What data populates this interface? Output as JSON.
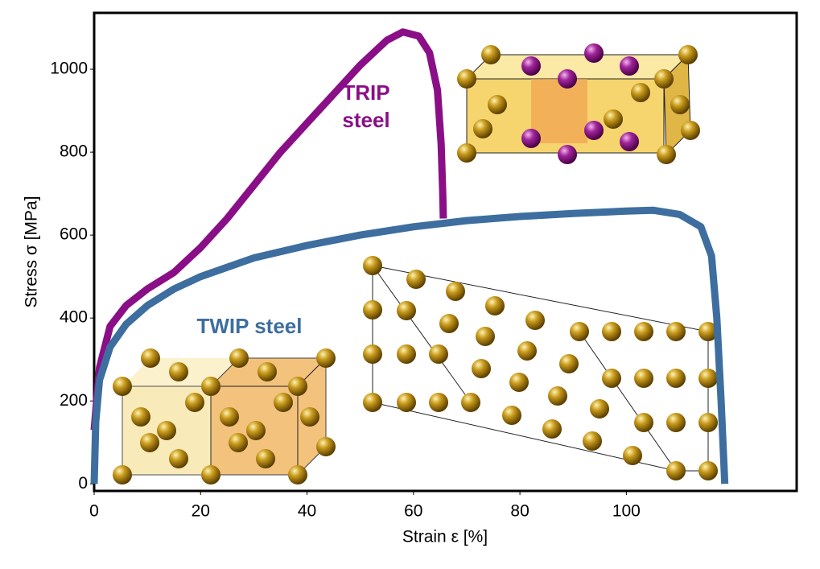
{
  "chart_data": {
    "type": "line",
    "x_label": "Strain ε [%]",
    "y_label": "Stress σ [MPa]",
    "xlim": [
      0,
      132
    ],
    "ylim": [
      -17,
      1136
    ],
    "xticks": [
      0,
      20,
      40,
      60,
      80,
      100
    ],
    "yticks": [
      0,
      200,
      400,
      600,
      800,
      1000
    ],
    "grid": false,
    "series": [
      {
        "name": "TRIP steel",
        "color": "#8a0f87",
        "x": [
          0,
          1,
          3,
          6,
          10,
          15,
          20,
          25,
          30,
          35,
          40,
          45,
          50,
          55,
          58,
          61,
          63,
          64.5,
          65.2,
          65.5,
          65.6
        ],
        "values": [
          130,
          280,
          380,
          430,
          470,
          510,
          570,
          640,
          720,
          800,
          870,
          940,
          1010,
          1070,
          1090,
          1080,
          1040,
          950,
          820,
          700,
          640
        ]
      },
      {
        "name": "TWIP steel",
        "color": "#3d6e9f",
        "x": [
          0,
          0.3,
          1,
          3,
          6,
          10,
          15,
          20,
          30,
          40,
          50,
          60,
          70,
          80,
          90,
          100,
          105,
          110,
          114,
          116,
          117,
          117.8,
          118.5
        ],
        "values": [
          0,
          150,
          250,
          330,
          385,
          430,
          470,
          500,
          545,
          575,
          600,
          620,
          635,
          645,
          652,
          658,
          660,
          650,
          620,
          550,
          400,
          200,
          0
        ]
      }
    ]
  }
}
